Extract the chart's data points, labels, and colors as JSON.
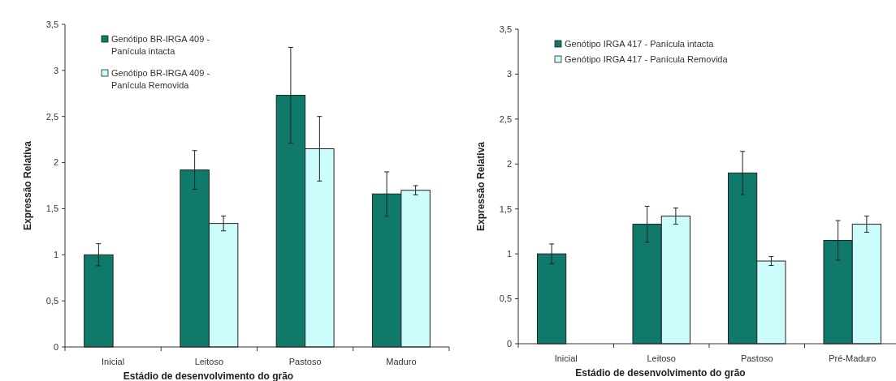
{
  "chart_data": [
    {
      "type": "bar",
      "xlabel": "Estádio de desenvolvimento do grão",
      "ylabel": "Expressão Relativa",
      "categories": [
        "Inicial",
        "Leitoso",
        "Pastoso",
        "Maduro"
      ],
      "ylim": [
        0,
        3.5
      ],
      "yticks": [
        0,
        {
          "value": 0.5,
          "label": "0,5"
        },
        1,
        {
          "value": 1.5,
          "label": "1,5"
        },
        2,
        {
          "value": 2.5,
          "label": "2,5"
        },
        3,
        {
          "value": 3.5,
          "label": "3,5"
        }
      ],
      "grid": false,
      "legend": "top left",
      "series": [
        {
          "name": "Genótipo BR-IRGA 409 - Panícula intacta",
          "color": "#0f7a6a",
          "values": [
            1.0,
            1.92,
            2.73,
            1.66
          ],
          "errors": [
            0.12,
            0.21,
            0.52,
            0.24
          ]
        },
        {
          "name": "Genótipo BR-IRGA 409 - Panícula Removida",
          "color": "#ccfcfc",
          "values": [
            null,
            1.34,
            2.15,
            1.7
          ],
          "errors": [
            null,
            0.08,
            0.35,
            0.05
          ]
        }
      ]
    },
    {
      "type": "bar",
      "xlabel": "Estádio de desenvolvimento do grão",
      "ylabel": "Expressão Relativa",
      "categories": [
        "Inicial",
        "Leitoso",
        "Pastoso",
        "Pré-Maduro"
      ],
      "ylim": [
        0,
        3.5
      ],
      "yticks": [
        0,
        {
          "value": 0.5,
          "label": "0,5"
        },
        1,
        {
          "value": 1.5,
          "label": "1,5"
        },
        2,
        {
          "value": 2.5,
          "label": "2,5"
        },
        3,
        {
          "value": 3.5,
          "label": "3,5"
        }
      ],
      "grid": false,
      "legend": "top left",
      "series": [
        {
          "name": "Genótipo IRGA 417 - Panícula intacta",
          "color": "#0f7a6a",
          "values": [
            1.0,
            1.33,
            1.9,
            1.15
          ],
          "errors": [
            0.11,
            0.2,
            0.24,
            0.22
          ]
        },
        {
          "name": "Genótipo IRGA 417 - Panícula Removida",
          "color": "#ccfcfc",
          "values": [
            null,
            1.42,
            0.92,
            1.33
          ],
          "errors": [
            null,
            0.09,
            0.05,
            0.09
          ]
        }
      ]
    }
  ]
}
